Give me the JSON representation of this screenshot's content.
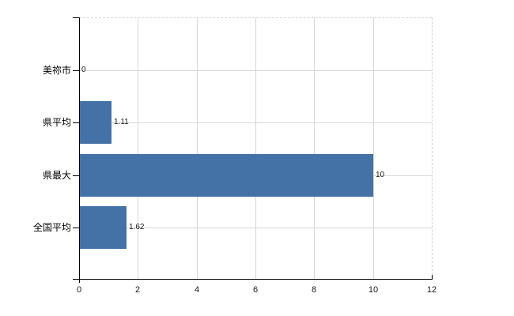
{
  "chart_data": {
    "type": "bar",
    "orientation": "horizontal",
    "title": "",
    "categories": [
      "美祢市",
      "県平均",
      "県最大",
      "全国平均"
    ],
    "values": [
      0,
      1.11,
      10,
      1.62
    ],
    "data_labels": [
      "0",
      "1.11",
      "10",
      "1.62"
    ],
    "xlabel": "",
    "ylabel": "",
    "xlim": [
      0,
      12
    ],
    "x_tick_values": [
      0,
      2,
      4,
      6,
      8,
      10,
      12
    ],
    "x_tick_labels": [
      "0",
      "2",
      "4",
      "6",
      "8",
      "10",
      "12"
    ],
    "legend": "none",
    "grid": "on",
    "colors": {
      "bar": "#4472a7",
      "grid": "#d7d7d7",
      "border": "#d4d4d4",
      "axis": "#000000",
      "text": "#000000",
      "background": "#ffffff"
    }
  }
}
